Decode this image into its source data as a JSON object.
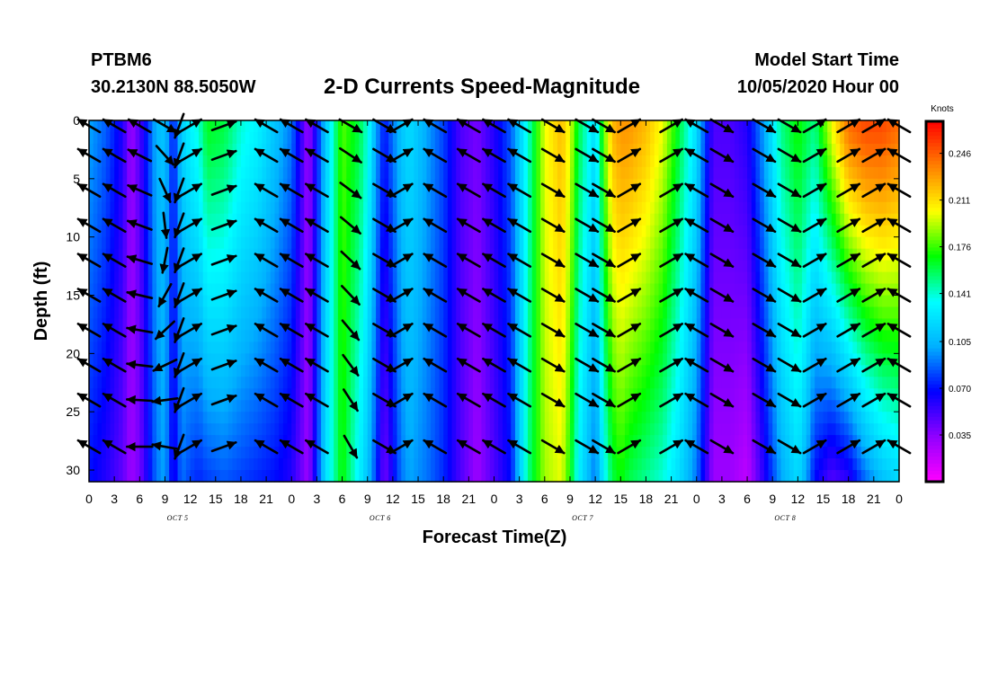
{
  "header": {
    "station_id": "PTBM6",
    "station_coords": "30.2130N 88.5050W",
    "title": "2-D Currents Speed-Magnitude",
    "start_label": "Model Start Time",
    "start_time": "10/05/2020 Hour 00"
  },
  "chart_data": {
    "type": "heatmap",
    "title": "2-D Currents Speed-Magnitude",
    "xlabel": "Forecast Time(Z)",
    "ylabel": "Depth (ft)",
    "x_ticks": [
      "0",
      "3",
      "6",
      "9",
      "12",
      "15",
      "18",
      "21",
      "0",
      "3",
      "6",
      "9",
      "12",
      "15",
      "18",
      "21",
      "0",
      "3",
      "6",
      "9",
      "12",
      "15",
      "18",
      "21",
      "0",
      "3",
      "6",
      "9",
      "12",
      "15",
      "18",
      "21",
      "0"
    ],
    "day_labels": [
      "OCT 5",
      "OCT 6",
      "OCT 7",
      "OCT 8"
    ],
    "hours_range": [
      0,
      96
    ],
    "y_ticks": [
      0,
      5,
      10,
      15,
      20,
      25,
      30
    ],
    "ylim": [
      0,
      31
    ],
    "colorbar": {
      "unit": "Knots",
      "ticks": [
        "0.246",
        "0.211",
        "0.176",
        "0.141",
        "0.105",
        "0.070",
        "0.035"
      ],
      "range": [
        0,
        0.27
      ],
      "colors": [
        "#ff00ff",
        "#9000ff",
        "#0000ff",
        "#00b0ff",
        "#00ffff",
        "#00ff00",
        "#ffff00",
        "#ff8000",
        "#ff0000"
      ]
    },
    "speed_profile": {
      "note_hours": [
        0,
        2,
        4,
        5,
        6,
        8,
        9,
        10,
        11,
        12,
        13,
        14,
        16,
        18,
        20,
        22,
        24,
        25,
        26,
        28,
        30,
        32,
        33,
        34,
        35,
        36,
        37,
        38,
        40,
        42,
        44,
        46,
        48,
        50,
        52,
        54,
        56,
        57,
        58,
        60,
        61,
        62,
        63,
        64,
        66,
        68,
        70,
        72,
        73,
        74,
        76,
        78,
        80,
        82,
        84,
        85,
        86,
        88,
        90,
        92,
        94,
        96
      ],
      "hours": [
        0,
        2,
        4,
        5,
        6,
        8,
        9,
        10,
        11,
        12,
        13,
        14,
        16,
        18,
        20,
        22,
        24,
        25,
        26,
        28,
        30,
        32,
        33,
        34,
        35,
        36,
        37,
        38,
        40,
        42,
        44,
        46,
        48,
        50,
        52,
        54,
        56,
        57,
        58,
        60,
        61,
        62,
        63,
        64,
        66,
        68,
        70,
        72,
        73,
        74,
        76,
        78,
        80,
        82,
        84,
        85,
        86,
        88,
        90,
        92,
        94,
        96
      ],
      "surface_knots": [
        0.1,
        0.085,
        0.06,
        0.03,
        0.05,
        0.105,
        0.11,
        0.07,
        0.115,
        0.13,
        0.14,
        0.165,
        0.16,
        0.14,
        0.13,
        0.11,
        0.09,
        0.06,
        0.03,
        0.11,
        0.18,
        0.16,
        0.14,
        0.1,
        0.07,
        0.09,
        0.11,
        0.12,
        0.1,
        0.08,
        0.05,
        0.04,
        0.06,
        0.085,
        0.14,
        0.2,
        0.22,
        0.2,
        0.16,
        0.12,
        0.18,
        0.22,
        0.23,
        0.23,
        0.22,
        0.2,
        0.16,
        0.12,
        0.08,
        0.05,
        0.05,
        0.06,
        0.1,
        0.15,
        0.17,
        0.16,
        0.15,
        0.2,
        0.24,
        0.25,
        0.25,
        0.24
      ],
      "bottom_knots": [
        0.07,
        0.06,
        0.045,
        0.03,
        0.04,
        0.09,
        0.1,
        0.06,
        0.09,
        0.08,
        0.075,
        0.08,
        0.085,
        0.08,
        0.075,
        0.07,
        0.06,
        0.045,
        0.03,
        0.12,
        0.17,
        0.13,
        0.11,
        0.08,
        0.04,
        0.065,
        0.09,
        0.1,
        0.09,
        0.075,
        0.05,
        0.03,
        0.05,
        0.07,
        0.15,
        0.19,
        0.2,
        0.17,
        0.13,
        0.09,
        0.13,
        0.16,
        0.17,
        0.16,
        0.15,
        0.14,
        0.12,
        0.09,
        0.06,
        0.03,
        0.03,
        0.02,
        0.06,
        0.1,
        0.12,
        0.1,
        0.07,
        0.05,
        0.06,
        0.09,
        0.11,
        0.12
      ]
    },
    "vectors": {
      "hours": [
        0,
        3,
        6,
        9,
        10.7,
        12,
        16,
        21,
        24,
        27,
        31,
        35,
        37,
        41,
        45,
        48,
        51,
        55,
        59,
        61,
        64,
        69,
        72,
        75,
        80,
        83,
        86,
        90,
        93,
        96
      ],
      "depths_ft": [
        0,
        3,
        6,
        9,
        12,
        15,
        18,
        21,
        24,
        28
      ],
      "surface_dir_deg": [
        300,
        300,
        300,
        120,
        200,
        60,
        70,
        300,
        300,
        300,
        120,
        120,
        60,
        300,
        300,
        300,
        300,
        120,
        120,
        120,
        60,
        60,
        300,
        120,
        120,
        120,
        60,
        60,
        60,
        300
      ],
      "deep_dir_deg": [
        300,
        300,
        270,
        280,
        200,
        60,
        70,
        300,
        300,
        300,
        150,
        120,
        60,
        300,
        300,
        300,
        300,
        120,
        120,
        120,
        60,
        60,
        300,
        120,
        120,
        120,
        60,
        60,
        60,
        300
      ]
    }
  }
}
